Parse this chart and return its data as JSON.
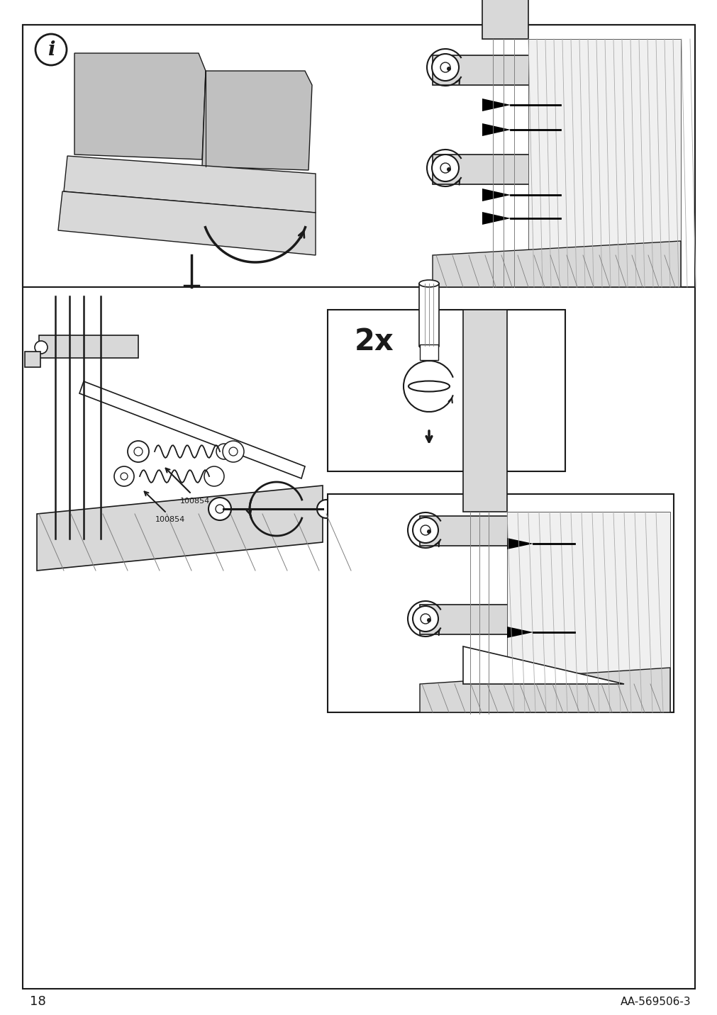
{
  "page_number": "18",
  "reference_code": "AA-569506-3",
  "background_color": "#ffffff",
  "border_color": "#1a1a1a",
  "line_color": "#1a1a1a",
  "gray_color": "#c0c0c0",
  "light_gray": "#d8d8d8",
  "dark_gray": "#808080",
  "info_icon_text": "i",
  "quantity_label": "2x",
  "part_label_1": "100854",
  "part_label_2": "100854"
}
